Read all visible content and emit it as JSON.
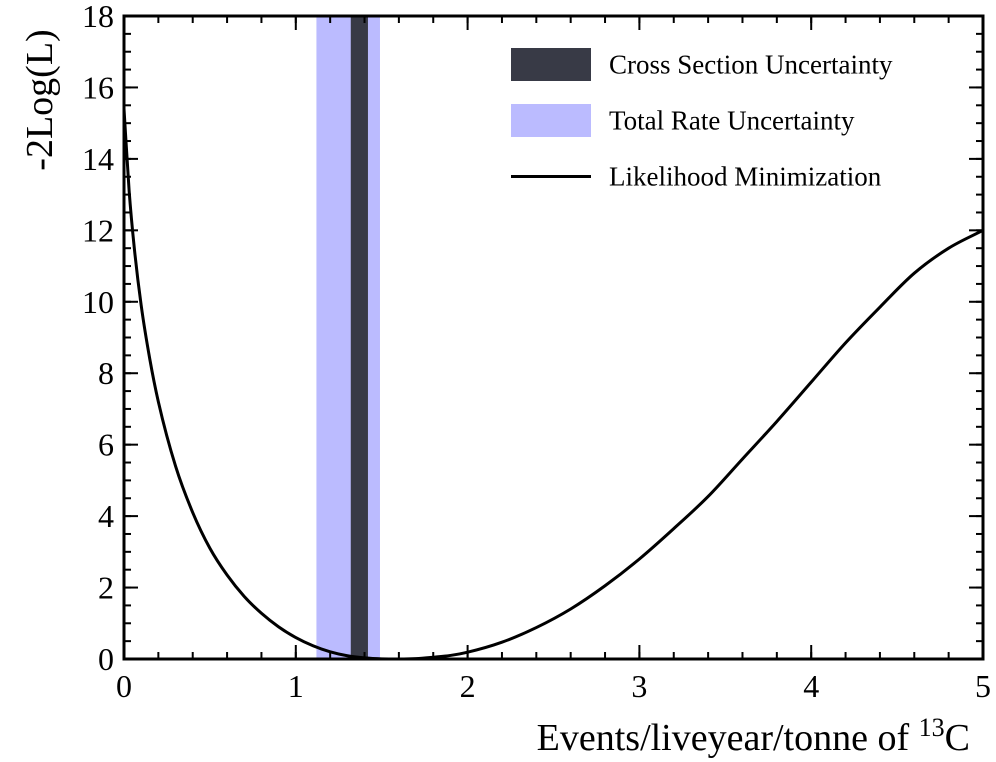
{
  "chart_data": {
    "type": "line",
    "title": "",
    "xlabel": "Events/liveyear/tonne of ",
    "xlabel_sup": "13",
    "xlabel_tail": "C",
    "ylabel": "-2Log(L)",
    "xlim": [
      0,
      5
    ],
    "ylim": [
      0,
      18
    ],
    "xticks": [
      0,
      1,
      2,
      3,
      4,
      5
    ],
    "yticks": [
      0,
      2,
      4,
      6,
      8,
      10,
      12,
      14,
      16,
      18
    ],
    "x_minor_step": 0.2,
    "y_minor_step": 0.5,
    "grid": false,
    "legend_position": "top-right",
    "bands": [
      {
        "name": "Total Rate Uncertainty",
        "x_range": [
          1.12,
          1.49
        ],
        "color": "#bbbbff"
      },
      {
        "name": "Cross Section Uncertainty",
        "x_range": [
          1.32,
          1.42
        ],
        "color": "#383a46"
      }
    ],
    "series": [
      {
        "name": "Likelihood Minimization",
        "color": "#000000",
        "x": [
          0.0,
          0.03,
          0.06,
          0.1,
          0.15,
          0.2,
          0.3,
          0.4,
          0.5,
          0.6,
          0.7,
          0.8,
          0.9,
          1.0,
          1.1,
          1.2,
          1.3,
          1.4,
          1.5,
          1.6,
          1.7,
          1.8,
          1.9,
          2.0,
          2.2,
          2.4,
          2.6,
          2.8,
          3.0,
          3.2,
          3.4,
          3.6,
          3.8,
          4.0,
          4.2,
          4.4,
          4.6,
          4.8,
          5.0
        ],
        "y": [
          15.4,
          13.1,
          11.5,
          9.9,
          8.4,
          7.2,
          5.4,
          4.1,
          3.1,
          2.35,
          1.75,
          1.28,
          0.9,
          0.6,
          0.37,
          0.2,
          0.09,
          0.03,
          0.004,
          0.0,
          0.01,
          0.05,
          0.1,
          0.19,
          0.47,
          0.88,
          1.4,
          2.05,
          2.8,
          3.65,
          4.55,
          5.6,
          6.65,
          7.75,
          8.85,
          9.85,
          10.8,
          11.5,
          12.0
        ]
      }
    ],
    "legend": [
      {
        "label": "Cross Section Uncertainty",
        "kind": "box",
        "color": "#383a46"
      },
      {
        "label": "Total Rate Uncertainty",
        "kind": "box",
        "color": "#bbbbff"
      },
      {
        "label": "Likelihood Minimization",
        "kind": "line",
        "color": "#000000"
      }
    ]
  }
}
